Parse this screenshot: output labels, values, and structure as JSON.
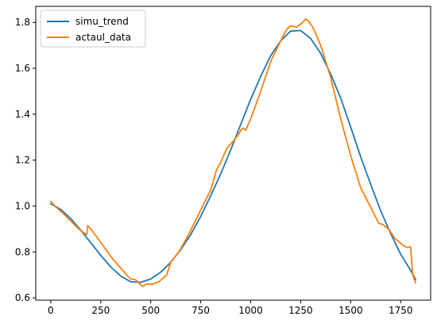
{
  "chart_data": {
    "type": "line",
    "title": "",
    "xlabel": "",
    "ylabel": "",
    "xlim": [
      -75,
      1900
    ],
    "ylim": [
      0.59,
      1.87
    ],
    "xticks": [
      0,
      250,
      500,
      750,
      1000,
      1250,
      1500,
      1750
    ],
    "yticks": [
      0.6,
      0.8,
      1.0,
      1.2,
      1.4,
      1.6,
      1.8
    ],
    "grid": false,
    "legend": "top-left",
    "series": [
      {
        "name": "simu_trend",
        "color": "#1f77b4",
        "x": [
          0,
          50,
          100,
          150,
          200,
          250,
          300,
          350,
          400,
          450,
          500,
          550,
          600,
          650,
          700,
          750,
          800,
          850,
          900,
          950,
          1000,
          1050,
          1100,
          1150,
          1200,
          1250,
          1300,
          1350,
          1400,
          1450,
          1500,
          1550,
          1600,
          1650,
          1700,
          1750,
          1800,
          1825
        ],
        "y": [
          1.01,
          0.985,
          0.945,
          0.895,
          0.84,
          0.785,
          0.735,
          0.695,
          0.67,
          0.668,
          0.682,
          0.712,
          0.755,
          0.81,
          0.875,
          0.955,
          1.045,
          1.14,
          1.245,
          1.355,
          1.465,
          1.565,
          1.655,
          1.72,
          1.762,
          1.765,
          1.73,
          1.665,
          1.575,
          1.47,
          1.345,
          1.215,
          1.095,
          0.98,
          0.88,
          0.79,
          0.72,
          0.68
        ]
      },
      {
        "name": "actaul_data",
        "color": "#ff7f0e",
        "x": [
          0,
          20,
          60,
          100,
          140,
          180,
          185,
          200,
          230,
          260,
          300,
          340,
          380,
          400,
          420,
          430,
          445,
          460,
          480,
          510,
          540,
          580,
          600,
          640,
          680,
          720,
          760,
          800,
          830,
          850,
          880,
          920,
          960,
          975,
          1000,
          1050,
          1100,
          1150,
          1180,
          1200,
          1230,
          1260,
          1275,
          1290,
          1310,
          1350,
          1400,
          1450,
          1500,
          1550,
          1600,
          1640,
          1660,
          1690,
          1720,
          1760,
          1780,
          1800,
          1810,
          1825
        ],
        "y": [
          1.02,
          1.0,
          0.97,
          0.935,
          0.9,
          0.875,
          0.915,
          0.9,
          0.865,
          0.83,
          0.78,
          0.74,
          0.7,
          0.682,
          0.68,
          0.675,
          0.66,
          0.65,
          0.66,
          0.66,
          0.67,
          0.7,
          0.755,
          0.8,
          0.86,
          0.93,
          1.0,
          1.07,
          1.16,
          1.19,
          1.25,
          1.29,
          1.34,
          1.33,
          1.38,
          1.5,
          1.63,
          1.72,
          1.77,
          1.785,
          1.78,
          1.8,
          1.815,
          1.805,
          1.78,
          1.7,
          1.56,
          1.38,
          1.22,
          1.08,
          0.995,
          0.925,
          0.92,
          0.9,
          0.86,
          0.83,
          0.82,
          0.822,
          0.7,
          0.665
        ]
      }
    ]
  }
}
